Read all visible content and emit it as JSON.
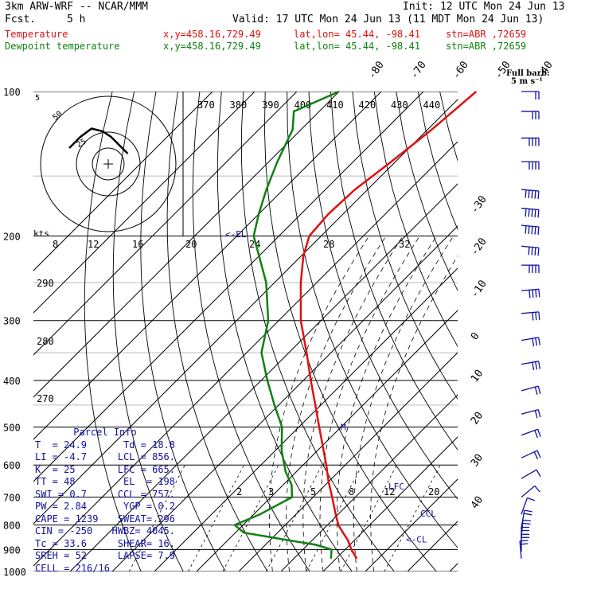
{
  "header": {
    "model": "3km ARW-WRF -- NCAR/MMM",
    "init": "Init: 12 UTC Mon 24 Jun 13",
    "fcst_label": "Fcst.",
    "fcst_value": "5 h",
    "valid": "Valid: 17 UTC Mon 24 Jun 13 (11 MDT Mon 24 Jun 13)",
    "temperature_label": "Temperature",
    "dewpoint_label": "Dewpoint temperature",
    "xy": "x,y=458.16,729.49",
    "latlon": "lat,lon= 45.44, -98.41",
    "station": "stn=ABR ,72659",
    "full_barb": "Full barb:",
    "full_barb_value": "5 m s⁻¹"
  },
  "colors": {
    "temperature": "#e01010",
    "dewpoint": "#108010",
    "accent": "#1010a0"
  },
  "chart_data": {
    "type": "line",
    "title": "",
    "ylabel": "",
    "xlabel": "",
    "y_scale": "log",
    "pressure_ticks": [
      100,
      200,
      300,
      400,
      500,
      600,
      700,
      800,
      900,
      1000
    ],
    "temperature_isotherm_labels": [
      -80,
      -70,
      -60,
      -50,
      -40,
      -30,
      -20,
      -10,
      0,
      10,
      20,
      30,
      40
    ],
    "theta_labels": [
      370,
      380,
      390,
      400,
      410,
      420,
      430,
      440
    ],
    "dry_adiabat_labels": [
      290,
      280,
      270
    ],
    "mixing_ratio_labels_200": [
      "8",
      "12",
      "16",
      "20",
      "24",
      "28",
      "32"
    ],
    "mixing_ratio_labels_700": [
      "2",
      "3",
      "5",
      "8",
      "12",
      "20"
    ],
    "hodograph_kts_label": "kts",
    "hodograph_rings": [
      "5",
      "25",
      "50"
    ],
    "level_markers": [
      {
        "label": "<-EL",
        "p": 198
      },
      {
        "label": "LFC",
        "p": 665
      },
      {
        "label": "CCL",
        "p": 757
      },
      {
        "label": "<-CL",
        "p": 856
      },
      {
        "label": "M",
        "p": 500
      }
    ],
    "series": [
      {
        "name": "Temperature",
        "points": [
          {
            "p": 940,
            "t": 24.9
          },
          {
            "p": 920,
            "t": 23.2
          },
          {
            "p": 900,
            "t": 21.5
          },
          {
            "p": 860,
            "t": 18.4
          },
          {
            "p": 830,
            "t": 15.5
          },
          {
            "p": 800,
            "t": 12.6
          },
          {
            "p": 760,
            "t": 9.4
          },
          {
            "p": 700,
            "t": 4.5
          },
          {
            "p": 650,
            "t": 0.0
          },
          {
            "p": 600,
            "t": -4.5
          },
          {
            "p": 550,
            "t": -9.6
          },
          {
            "p": 500,
            "t": -15.2
          },
          {
            "p": 450,
            "t": -21.3
          },
          {
            "p": 400,
            "t": -28.2
          },
          {
            "p": 350,
            "t": -35.8
          },
          {
            "p": 300,
            "t": -44.8
          },
          {
            "p": 250,
            "t": -53.8
          },
          {
            "p": 220,
            "t": -59.5
          },
          {
            "p": 200,
            "t": -62.8
          },
          {
            "p": 180,
            "t": -63.5
          },
          {
            "p": 160,
            "t": -63.0
          },
          {
            "p": 140,
            "t": -61.0
          },
          {
            "p": 120,
            "t": -59.0
          },
          {
            "p": 100,
            "t": -57.5
          }
        ]
      },
      {
        "name": "Dewpoint temperature",
        "points": [
          {
            "p": 940,
            "t": 18.8
          },
          {
            "p": 900,
            "t": 16.8
          },
          {
            "p": 880,
            "t": 12.0
          },
          {
            "p": 850,
            "t": 0.0
          },
          {
            "p": 830,
            "t": -8.0
          },
          {
            "p": 800,
            "t": -12.0
          },
          {
            "p": 760,
            "t": -8.5
          },
          {
            "p": 700,
            "t": -5.0
          },
          {
            "p": 660,
            "t": -8.0
          },
          {
            "p": 620,
            "t": -12.5
          },
          {
            "p": 560,
            "t": -18.5
          },
          {
            "p": 500,
            "t": -24.0
          },
          {
            "p": 450,
            "t": -31.0
          },
          {
            "p": 400,
            "t": -38.5
          },
          {
            "p": 350,
            "t": -46.5
          },
          {
            "p": 300,
            "t": -52.5
          },
          {
            "p": 250,
            "t": -62.0
          },
          {
            "p": 220,
            "t": -70.0
          },
          {
            "p": 200,
            "t": -76.0
          },
          {
            "p": 180,
            "t": -80.0
          },
          {
            "p": 160,
            "t": -84.0
          },
          {
            "p": 140,
            "t": -88.0
          },
          {
            "p": 120,
            "t": -92.0
          },
          {
            "p": 110,
            "t": -96.0
          },
          {
            "p": 100,
            "t": -90.0
          }
        ]
      }
    ],
    "wind_barbs": [
      {
        "p": 100,
        "dir": 270,
        "spd": 12
      },
      {
        "p": 110,
        "dir": 270,
        "spd": 15
      },
      {
        "p": 125,
        "dir": 270,
        "spd": 20
      },
      {
        "p": 140,
        "dir": 270,
        "spd": 22
      },
      {
        "p": 160,
        "dir": 275,
        "spd": 25
      },
      {
        "p": 175,
        "dir": 275,
        "spd": 25
      },
      {
        "p": 190,
        "dir": 275,
        "spd": 24
      },
      {
        "p": 210,
        "dir": 275,
        "spd": 22
      },
      {
        "p": 230,
        "dir": 270,
        "spd": 20
      },
      {
        "p": 260,
        "dir": 265,
        "spd": 18
      },
      {
        "p": 290,
        "dir": 265,
        "spd": 17
      },
      {
        "p": 330,
        "dir": 260,
        "spd": 16
      },
      {
        "p": 370,
        "dir": 260,
        "spd": 14
      },
      {
        "p": 420,
        "dir": 255,
        "spd": 12
      },
      {
        "p": 470,
        "dir": 255,
        "spd": 11
      },
      {
        "p": 520,
        "dir": 250,
        "spd": 10
      },
      {
        "p": 580,
        "dir": 245,
        "spd": 8
      },
      {
        "p": 640,
        "dir": 240,
        "spd": 6
      },
      {
        "p": 700,
        "dir": 230,
        "spd": 5
      },
      {
        "p": 760,
        "dir": 200,
        "spd": 5
      },
      {
        "p": 810,
        "dir": 190,
        "spd": 8
      },
      {
        "p": 850,
        "dir": 185,
        "spd": 10
      },
      {
        "p": 880,
        "dir": 180,
        "spd": 11
      },
      {
        "p": 910,
        "dir": 180,
        "spd": 10
      },
      {
        "p": 940,
        "dir": 175,
        "spd": 8
      }
    ],
    "hodograph_points": [
      {
        "u": -5.0,
        "v": 1.0
      },
      {
        "u": -3.0,
        "v": -1.0
      },
      {
        "u": -1.0,
        "v": -2.5
      },
      {
        "u": 1.0,
        "v": -2.0
      },
      {
        "u": 2.5,
        "v": -1.0
      },
      {
        "u": 4.0,
        "v": 0.5
      },
      {
        "u": 5.5,
        "v": 2.0
      }
    ]
  },
  "parcel": {
    "title": "Parcel Info",
    "rows": [
      [
        "T  =",
        "24.9",
        "Td =",
        "18.8"
      ],
      [
        "LI =",
        "-4.7",
        "LCL =",
        "856."
      ],
      [
        "K  =",
        "25",
        "LFC =",
        "665."
      ],
      [
        "TT =",
        "48",
        "EL  =",
        "198"
      ],
      [
        "SWI =",
        "0.7",
        "CCL =",
        "757."
      ],
      [
        "PW =",
        "2.84",
        "YGP =",
        "0.2"
      ],
      [
        "CAPE =",
        "1239",
        "SWEAT=",
        "296"
      ],
      [
        "CIN =",
        "-250",
        "HWBZ=",
        "4045."
      ],
      [
        "Tc =",
        "33.6",
        "SHEAR=",
        "16."
      ],
      [
        "SREH =",
        "52",
        "LAPSE=",
        "7.9"
      ]
    ],
    "cell": "CELL = 216/16"
  }
}
